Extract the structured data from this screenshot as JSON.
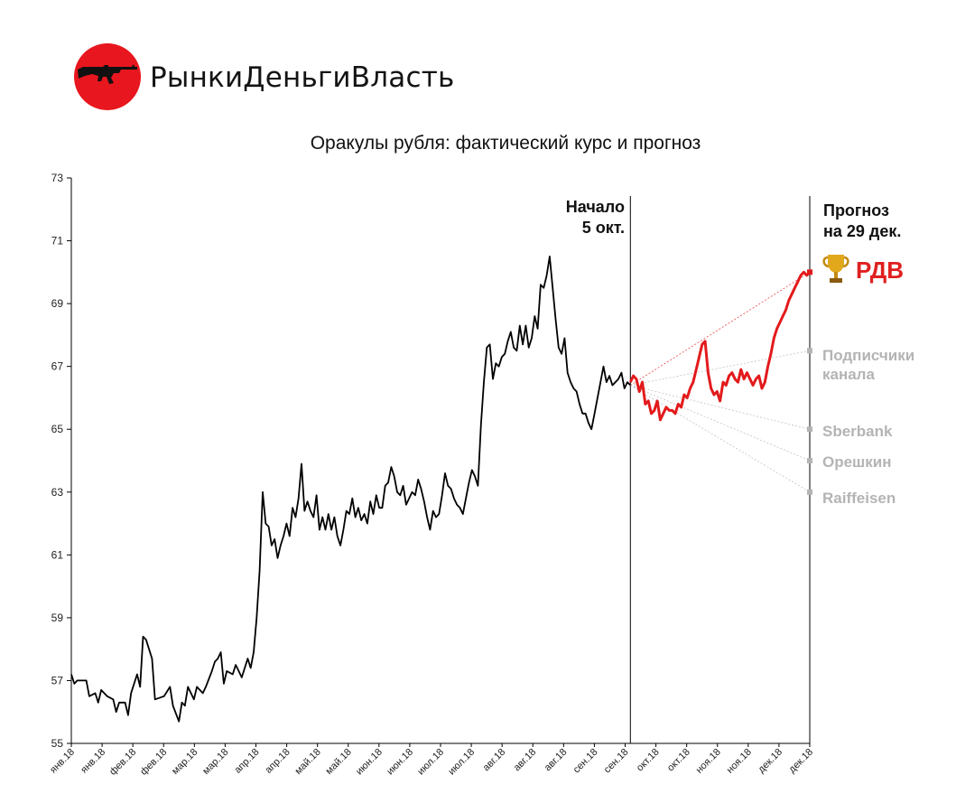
{
  "header": {
    "brand": "РынкиДеньгиВласть",
    "logo_icon": "kalashnikov-rifle-icon",
    "logo_color": "#e8161e"
  },
  "annotations": {
    "start_line1": "Начало",
    "start_line2": "5 окт.",
    "forecast_line1": "Прогноз",
    "forecast_line2": "на 29 дек."
  },
  "chart_data": {
    "type": "line",
    "title": "Оракулы рубля: фактический курс и прогноз",
    "xlabel": "",
    "ylabel": "",
    "ylim": [
      55,
      73
    ],
    "yticks": [
      55,
      57,
      59,
      61,
      63,
      65,
      67,
      69,
      71,
      73
    ],
    "grid": false,
    "x_tick_labels": [
      "янв.18",
      "янв.18",
      "фев.18",
      "фев.18",
      "мар.18",
      "мар.18",
      "апр.18",
      "апр.18",
      "май.18",
      "май.18",
      "июн.18",
      "июн.18",
      "июл.18",
      "июл.18",
      "авг.18",
      "авг.18",
      "авг.18",
      "сен.18",
      "сен.18",
      "окт.18",
      "окт.18",
      "ноя.18",
      "ноя.18",
      "дек.18",
      "дек.18"
    ],
    "x_index_range": [
      0,
      247
    ],
    "start_index": 187,
    "series": [
      {
        "name": "",
        "color": "#000000",
        "points": [
          [
            0,
            57.2
          ],
          [
            1,
            56.9
          ],
          [
            2,
            57.0
          ],
          [
            5,
            57.0
          ],
          [
            6,
            56.5
          ],
          [
            8,
            56.6
          ],
          [
            9,
            56.3
          ],
          [
            10,
            56.7
          ],
          [
            12,
            56.5
          ],
          [
            14,
            56.4
          ],
          [
            15,
            56.0
          ],
          [
            16,
            56.3
          ],
          [
            18,
            56.3
          ],
          [
            19,
            55.9
          ],
          [
            20,
            56.6
          ],
          [
            22,
            57.2
          ],
          [
            23,
            56.8
          ],
          [
            24,
            58.4
          ],
          [
            25,
            58.3
          ],
          [
            27,
            57.7
          ],
          [
            28,
            56.4
          ],
          [
            31,
            56.5
          ],
          [
            33,
            56.8
          ],
          [
            34,
            56.2
          ],
          [
            36,
            55.7
          ],
          [
            37,
            56.3
          ],
          [
            38,
            56.2
          ],
          [
            39,
            56.8
          ],
          [
            41,
            56.4
          ],
          [
            42,
            56.8
          ],
          [
            44,
            56.6
          ],
          [
            45,
            56.8
          ],
          [
            47,
            57.3
          ],
          [
            48,
            57.6
          ],
          [
            49,
            57.7
          ],
          [
            50,
            57.9
          ],
          [
            51,
            56.9
          ],
          [
            52,
            57.3
          ],
          [
            54,
            57.2
          ],
          [
            55,
            57.5
          ],
          [
            56,
            57.3
          ],
          [
            57,
            57.1
          ],
          [
            59,
            57.7
          ],
          [
            60,
            57.4
          ],
          [
            61,
            57.9
          ],
          [
            62,
            59.0
          ],
          [
            63,
            60.5
          ],
          [
            64,
            63.0
          ],
          [
            65,
            62.0
          ],
          [
            66,
            61.9
          ],
          [
            67,
            61.3
          ],
          [
            68,
            61.5
          ],
          [
            69,
            60.9
          ],
          [
            70,
            61.3
          ],
          [
            71,
            61.6
          ],
          [
            72,
            62.0
          ],
          [
            73,
            61.6
          ],
          [
            74,
            62.5
          ],
          [
            75,
            62.2
          ],
          [
            76,
            62.8
          ],
          [
            77,
            63.9
          ],
          [
            78,
            62.4
          ],
          [
            79,
            62.7
          ],
          [
            80,
            62.4
          ],
          [
            81,
            62.2
          ],
          [
            82,
            62.9
          ],
          [
            83,
            61.8
          ],
          [
            84,
            62.2
          ],
          [
            85,
            61.8
          ],
          [
            86,
            62.3
          ],
          [
            87,
            61.8
          ],
          [
            88,
            62.2
          ],
          [
            89,
            61.6
          ],
          [
            90,
            61.3
          ],
          [
            91,
            61.8
          ],
          [
            92,
            62.4
          ],
          [
            93,
            62.3
          ],
          [
            94,
            62.8
          ],
          [
            95,
            62.2
          ],
          [
            96,
            62.5
          ],
          [
            97,
            62.1
          ],
          [
            98,
            62.3
          ],
          [
            99,
            62.0
          ],
          [
            100,
            62.7
          ],
          [
            101,
            62.3
          ],
          [
            102,
            62.9
          ],
          [
            103,
            62.5
          ],
          [
            104,
            62.5
          ],
          [
            105,
            63.2
          ],
          [
            106,
            63.3
          ],
          [
            107,
            63.8
          ],
          [
            108,
            63.5
          ],
          [
            109,
            63.0
          ],
          [
            110,
            62.9
          ],
          [
            111,
            63.2
          ],
          [
            112,
            62.6
          ],
          [
            113,
            62.8
          ],
          [
            114,
            63.0
          ],
          [
            115,
            62.9
          ],
          [
            116,
            63.4
          ],
          [
            117,
            63.1
          ],
          [
            118,
            62.7
          ],
          [
            119,
            62.2
          ],
          [
            120,
            61.8
          ],
          [
            121,
            62.4
          ],
          [
            122,
            62.2
          ],
          [
            123,
            62.3
          ],
          [
            124,
            62.9
          ],
          [
            125,
            63.6
          ],
          [
            126,
            63.2
          ],
          [
            127,
            63.1
          ],
          [
            128,
            62.8
          ],
          [
            129,
            62.6
          ],
          [
            130,
            62.5
          ],
          [
            131,
            62.3
          ],
          [
            132,
            62.8
          ],
          [
            133,
            63.3
          ],
          [
            134,
            63.7
          ],
          [
            135,
            63.5
          ],
          [
            136,
            63.2
          ],
          [
            137,
            65.1
          ],
          [
            138,
            66.5
          ],
          [
            139,
            67.6
          ],
          [
            140,
            67.7
          ],
          [
            141,
            66.6
          ],
          [
            142,
            67.1
          ],
          [
            143,
            67.0
          ],
          [
            144,
            67.3
          ],
          [
            145,
            67.4
          ],
          [
            146,
            67.8
          ],
          [
            147,
            68.1
          ],
          [
            148,
            67.6
          ],
          [
            149,
            67.5
          ],
          [
            150,
            68.3
          ],
          [
            151,
            67.7
          ],
          [
            152,
            68.3
          ],
          [
            153,
            67.6
          ],
          [
            154,
            67.9
          ],
          [
            155,
            68.6
          ],
          [
            156,
            68.2
          ],
          [
            157,
            69.6
          ],
          [
            158,
            69.5
          ],
          [
            159,
            69.9
          ],
          [
            160,
            70.5
          ],
          [
            161,
            69.5
          ],
          [
            162,
            68.5
          ],
          [
            163,
            67.6
          ],
          [
            164,
            67.4
          ],
          [
            165,
            67.9
          ],
          [
            166,
            66.8
          ],
          [
            167,
            66.5
          ],
          [
            168,
            66.3
          ],
          [
            169,
            66.2
          ],
          [
            170,
            65.8
          ],
          [
            171,
            65.5
          ],
          [
            172,
            65.5
          ],
          [
            173,
            65.2
          ],
          [
            174,
            65.0
          ],
          [
            175,
            65.5
          ],
          [
            176,
            66.0
          ],
          [
            177,
            66.5
          ],
          [
            178,
            67.0
          ],
          [
            179,
            66.5
          ],
          [
            180,
            66.7
          ],
          [
            181,
            66.4
          ],
          [
            182,
            66.5
          ],
          [
            183,
            66.6
          ],
          [
            184,
            66.8
          ],
          [
            185,
            66.3
          ],
          [
            186,
            66.5
          ],
          [
            187,
            66.4
          ]
        ]
      },
      {
        "name": "",
        "color": "#e31a1c",
        "points": [
          [
            187,
            66.5
          ],
          [
            188,
            66.7
          ],
          [
            189,
            66.6
          ],
          [
            190,
            66.2
          ],
          [
            191,
            66.5
          ],
          [
            192,
            65.8
          ],
          [
            193,
            65.9
          ],
          [
            194,
            65.5
          ],
          [
            195,
            65.6
          ],
          [
            196,
            65.9
          ],
          [
            197,
            65.3
          ],
          [
            198,
            65.5
          ],
          [
            199,
            65.7
          ],
          [
            200,
            65.6
          ],
          [
            201,
            65.6
          ],
          [
            202,
            65.5
          ],
          [
            203,
            65.8
          ],
          [
            204,
            65.7
          ],
          [
            205,
            66.1
          ],
          [
            206,
            66.0
          ],
          [
            207,
            66.3
          ],
          [
            208,
            66.5
          ],
          [
            209,
            66.9
          ],
          [
            210,
            67.3
          ],
          [
            211,
            67.7
          ],
          [
            212,
            67.8
          ],
          [
            213,
            66.8
          ],
          [
            214,
            66.3
          ],
          [
            215,
            66.1
          ],
          [
            216,
            66.2
          ],
          [
            217,
            65.9
          ],
          [
            218,
            66.5
          ],
          [
            219,
            66.4
          ],
          [
            220,
            66.7
          ],
          [
            221,
            66.8
          ],
          [
            222,
            66.6
          ],
          [
            223,
            66.5
          ],
          [
            224,
            66.9
          ],
          [
            225,
            66.6
          ],
          [
            226,
            66.8
          ],
          [
            227,
            66.6
          ],
          [
            228,
            66.4
          ],
          [
            229,
            66.6
          ],
          [
            230,
            66.7
          ],
          [
            231,
            66.3
          ],
          [
            232,
            66.5
          ],
          [
            233,
            67.0
          ],
          [
            234,
            67.4
          ],
          [
            235,
            67.9
          ],
          [
            236,
            68.2
          ],
          [
            237,
            68.4
          ],
          [
            238,
            68.6
          ],
          [
            239,
            68.8
          ],
          [
            240,
            69.1
          ],
          [
            241,
            69.3
          ],
          [
            242,
            69.5
          ],
          [
            243,
            69.7
          ],
          [
            244,
            69.9
          ],
          [
            245,
            70.0
          ],
          [
            246,
            69.9
          ],
          [
            247,
            70.0
          ]
        ]
      }
    ],
    "forecasts": [
      {
        "label": "РДВ",
        "value": 70.0,
        "color": "#e31a1c"
      },
      {
        "label": "Подписчики канала",
        "label_line1": "Подписчики",
        "label_line2": "канала",
        "value": 67.5,
        "color": "#b4b4b4"
      },
      {
        "label": "Sberbank",
        "value": 65.0,
        "color": "#b4b4b4"
      },
      {
        "label": "Орешкин",
        "value": 64.0,
        "color": "#b4b4b4"
      },
      {
        "label": "Raiffeisen",
        "value": 63.0,
        "color": "#b4b4b4"
      }
    ]
  }
}
